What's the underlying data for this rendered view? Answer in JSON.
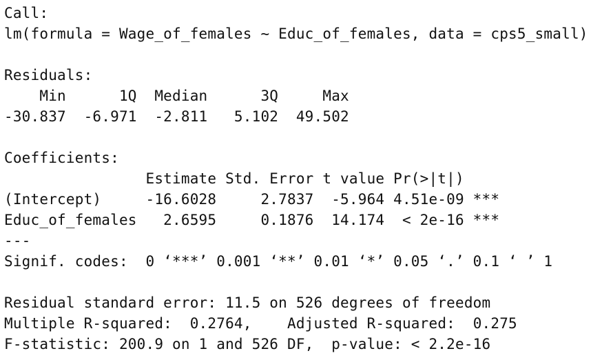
{
  "output": {
    "call_header": "Call:",
    "call_formula": "lm(formula = Wage_of_females ~ Educ_of_females, data = cps5_small)",
    "residuals_header": "Residuals:",
    "residuals_columns": "    Min      1Q  Median      3Q     Max ",
    "residuals_values": "-30.837  -6.971  -2.811   5.102  49.502 ",
    "coefficients_header": "Coefficients:",
    "coefficients_columns": "                Estimate Std. Error t value Pr(>|t|)    ",
    "coefficients_intercept_row": "(Intercept)     -16.6028     2.7837  -5.964 4.51e-09 ***",
    "coefficients_educ_row": "Educ_of_females   2.6595     0.1876  14.174  < 2e-16 ***",
    "separator": "---",
    "signif_codes": "Signif. codes:  0 ‘***’ 0.001 ‘**’ 0.01 ‘*’ 0.05 ‘.’ 0.1 ‘ ’ 1",
    "residual_std_error": "Residual standard error: 11.5 on 526 degrees of freedom",
    "r_squared": "Multiple R-squared:  0.2764,\tAdjusted R-squared:  0.275 ",
    "f_statistic": "F-statistic: 200.9 on 1 and 526 DF,  p-value: < 2.2e-16"
  }
}
